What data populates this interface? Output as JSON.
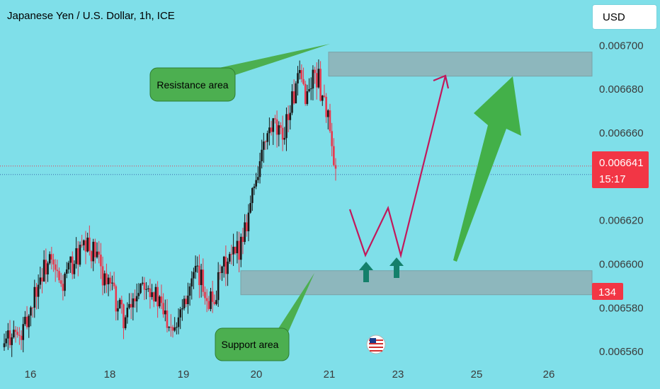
{
  "header": {
    "title": "Japanese Yen / U.S. Dollar, 1h, ICE",
    "currency_button": "USD"
  },
  "colors": {
    "background": "#7fdfe9",
    "bullish": "#1a1a1a",
    "bearish": "#e8394e",
    "zone": "#8fb3b8",
    "callout": "#4caf50",
    "path": "#c2185b",
    "arrow": "#43b049",
    "up_marker": "#14806b",
    "price_tag": "#f23645"
  },
  "annotations": {
    "resistance_label": "Resistance area",
    "support_label": "Support area"
  },
  "price_tag": {
    "price": "0.006641",
    "countdown": "15:17"
  },
  "countdown_tag": "134",
  "chart_data": {
    "type": "candlestick",
    "x_axis_labels": [
      "16",
      "18",
      "19",
      "20",
      "21",
      "23",
      "25",
      "26"
    ],
    "y_axis_labels": [
      "0.006700",
      "0.006680",
      "0.006660",
      "0.006620",
      "0.006600",
      "0.006580",
      "0.006560"
    ],
    "ylim": [
      0.00655,
      0.006704
    ],
    "last_price": 0.006641,
    "resistance_zone": [
      0.006686,
      0.006697
    ],
    "support_zone": [
      0.006586,
      0.006597
    ],
    "close_series": [
      0.006562,
      0.006566,
      0.00657,
      0.006568,
      0.006565,
      0.006569,
      0.006574,
      0.00658,
      0.006587,
      0.006592,
      0.006596,
      0.006599,
      0.006601,
      0.006597,
      0.006594,
      0.006589,
      0.006593,
      0.006597,
      0.0066,
      0.006603,
      0.006605,
      0.006606,
      0.006607,
      0.006606,
      0.006604,
      0.0066,
      0.006596,
      0.006592,
      0.006589,
      0.006585,
      0.006581,
      0.006577,
      0.006575,
      0.006578,
      0.006583,
      0.006588,
      0.006592,
      0.006594,
      0.006592,
      0.006589,
      0.006585,
      0.006581,
      0.006578,
      0.006576,
      0.006574,
      0.006573,
      0.006578,
      0.006583,
      0.006587,
      0.00659,
      0.006593,
      0.006594,
      0.006592,
      0.006588,
      0.006585,
      0.006583,
      0.006588,
      0.006593,
      0.006598,
      0.0066,
      0.006602,
      0.006604,
      0.006608,
      0.006614,
      0.006621,
      0.006628,
      0.006636,
      0.006644,
      0.00665,
      0.006655,
      0.00666,
      0.006662,
      0.00666,
      0.006657,
      0.006663,
      0.006669,
      0.006675,
      0.00668,
      0.006684,
      0.006681,
      0.006677,
      0.006683,
      0.006688,
      0.006684,
      0.006677,
      0.006672,
      0.00666,
      0.006641
    ]
  }
}
